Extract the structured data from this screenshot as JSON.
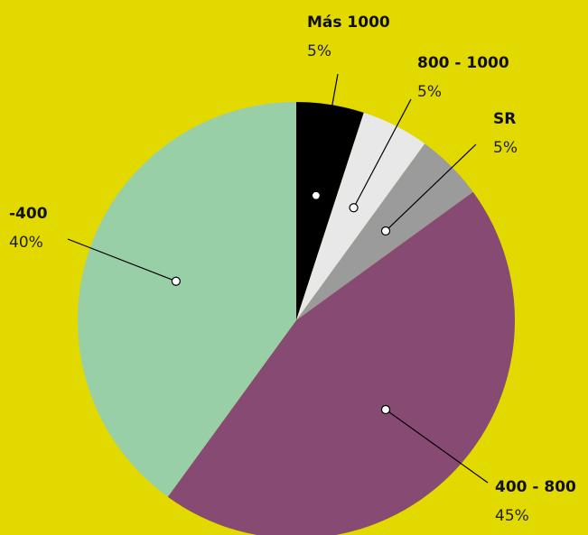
{
  "chart_data": {
    "type": "pie",
    "categories": [
      "Más 1000",
      "800 - 1000",
      "SR",
      "400 - 800",
      "-400"
    ],
    "values": [
      5,
      5,
      5,
      45,
      40
    ],
    "value_labels": [
      "5%",
      "5%",
      "5%",
      "45%",
      "40%"
    ],
    "colors": [
      "#000000",
      "#e8e8e8",
      "#9b9b9b",
      "#874a73",
      "#99cfa6"
    ],
    "background": "#e2d900"
  }
}
